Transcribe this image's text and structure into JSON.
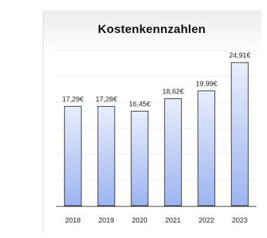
{
  "chart_data": {
    "type": "bar",
    "title": "Kostenkennzahlen",
    "xlabel": "",
    "ylabel": "",
    "categories": [
      "2018",
      "2019",
      "2020",
      "2021",
      "2022",
      "2023"
    ],
    "values": [
      17.29,
      17.28,
      16.45,
      18.62,
      19.99,
      24.91
    ],
    "data_labels": [
      "17,29€",
      "17,28€",
      "16,45€",
      "18,62€",
      "19,99€",
      "24,91€"
    ],
    "ylim": [
      0,
      27
    ],
    "grid": true,
    "legend": "none",
    "colors": {
      "bar_top": "#e8eefc",
      "bar_bottom": "#9db4f0",
      "bar_stroke": "#333333",
      "grid": "#eeeeee",
      "axis": "#333333"
    }
  }
}
